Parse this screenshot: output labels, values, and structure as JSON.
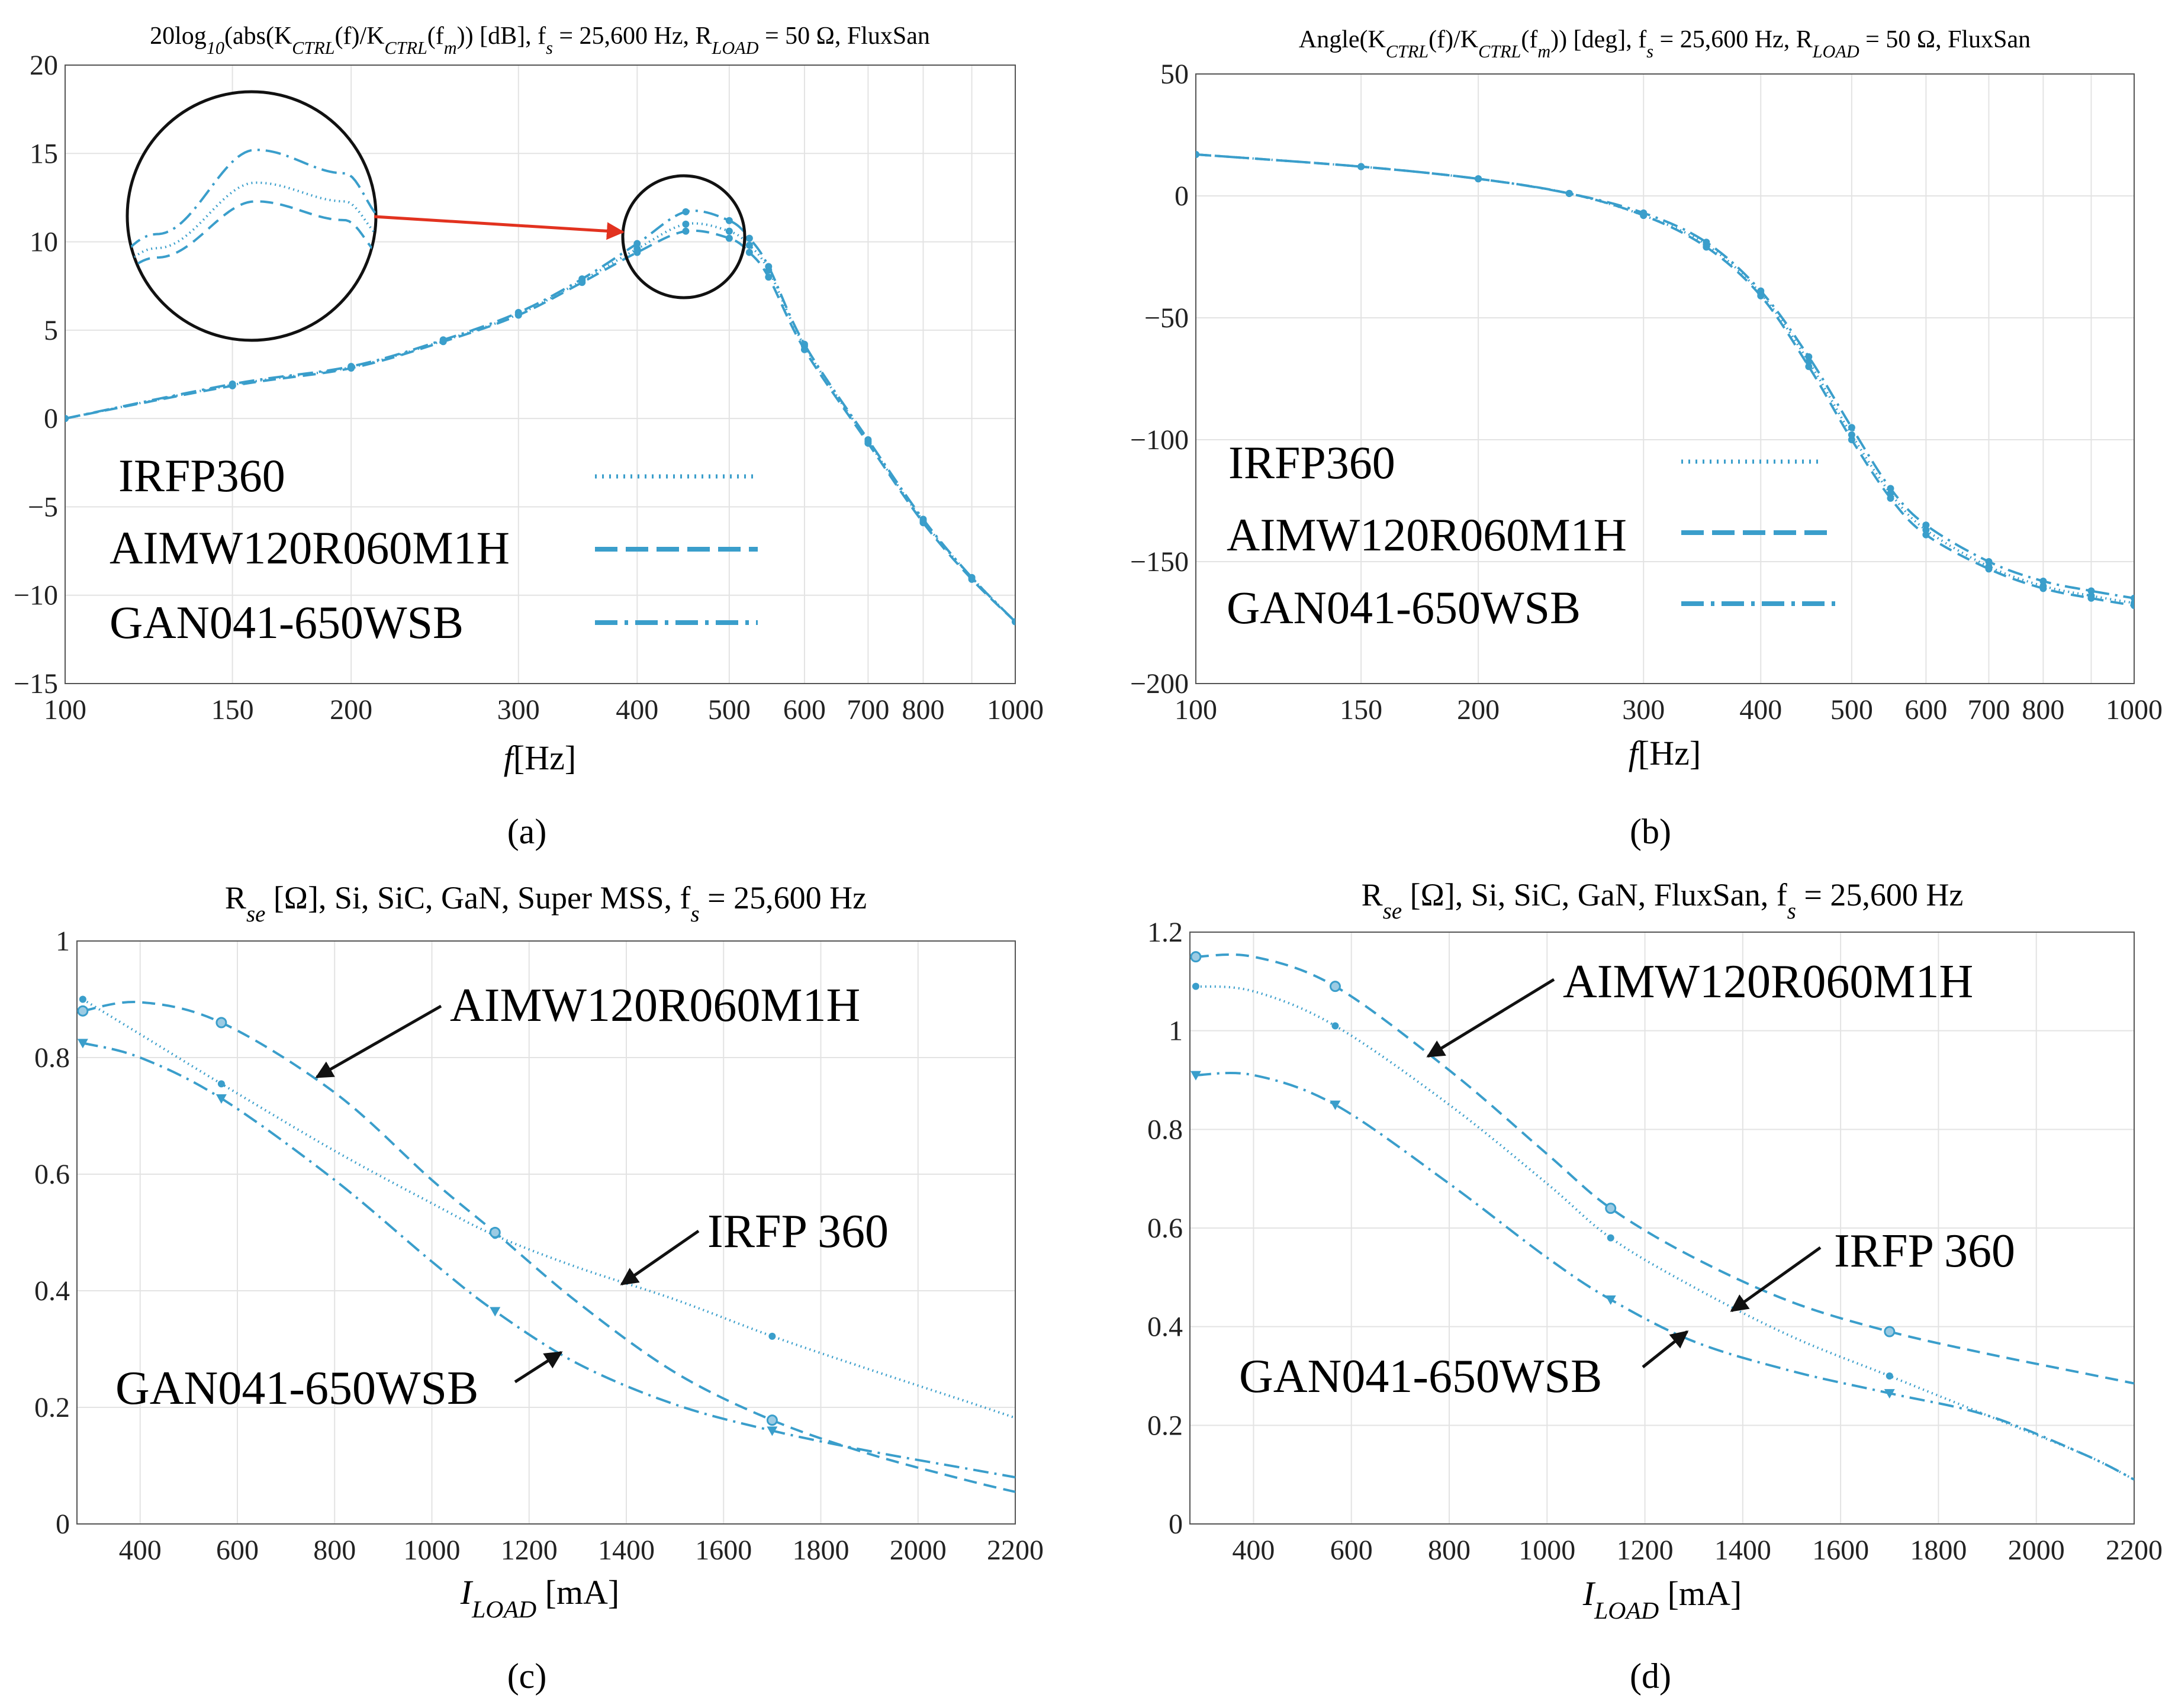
{
  "colors": {
    "series": "#3a9ecb",
    "arrow_black": "#111111",
    "arrow_red": "#e2321f",
    "grid": "#e3e3e3",
    "axis": "#333333"
  },
  "chart_data": [
    {
      "id": "a",
      "type": "line",
      "panel_label": "(a)",
      "title_parts": [
        "20log",
        "10",
        "(abs(K",
        "CTRL",
        "(f)/K",
        "CTRL",
        "(f",
        "m",
        ")) [dB], f",
        "s",
        " = 25,600 Hz, R",
        "LOAD",
        " = 50 Ω, FluxSan"
      ],
      "xlabel_main": "f",
      "xlabel_unit": "[Hz]",
      "xscale": "log",
      "xlim": [
        100,
        1000
      ],
      "ylim": [
        -15,
        20
      ],
      "xticks": [
        100,
        150,
        200,
        300,
        400,
        500,
        600,
        700,
        800,
        1000
      ],
      "xtick_labels": [
        "100",
        "150",
        "200",
        "300",
        "400",
        "500",
        "600",
        "700",
        "800",
        "1000"
      ],
      "yticks": [
        -15,
        -10,
        -5,
        0,
        5,
        10,
        15,
        20
      ],
      "ytick_labels": [
        "−15",
        "−10",
        "−5",
        "0",
        "5",
        "10",
        "15",
        "20"
      ],
      "legend": [
        "IRFP360",
        "AIMW120R060M1H",
        "GAN041-650WSB"
      ],
      "x": [
        100,
        150,
        200,
        250,
        300,
        350,
        400,
        450,
        500,
        525,
        550,
        600,
        700,
        800,
        900,
        1000
      ],
      "series": [
        {
          "name": "IRFP360",
          "dash": "dotted",
          "values": [
            0,
            1.9,
            2.9,
            4.4,
            5.9,
            7.8,
            9.6,
            11.0,
            10.6,
            9.8,
            8.4,
            4.1,
            -1.3,
            -5.8,
            -9.0,
            -11.5
          ]
        },
        {
          "name": "AIMW120R060M1H",
          "dash": "dashed",
          "values": [
            0,
            1.85,
            2.85,
            4.35,
            5.85,
            7.7,
            9.4,
            10.6,
            10.2,
            9.4,
            8.0,
            3.9,
            -1.4,
            -5.9,
            -9.1,
            -11.5
          ]
        },
        {
          "name": "GAN041-650WSB",
          "dash": "dashdot",
          "values": [
            0,
            1.95,
            2.95,
            4.45,
            6.0,
            7.9,
            9.9,
            11.7,
            11.2,
            10.2,
            8.6,
            4.2,
            -1.2,
            -5.7,
            -9.0,
            -11.5
          ]
        }
      ],
      "zoom_inset": true
    },
    {
      "id": "b",
      "type": "line",
      "panel_label": "(b)",
      "title_parts": [
        "Angle(K",
        "CTRL",
        "(f)/K",
        "CTRL",
        "(f",
        "m",
        ")) [deg], f",
        "s",
        " = 25,600 Hz, R",
        "LOAD",
        " = 50 Ω, FluxSan"
      ],
      "xlabel_main": "f",
      "xlabel_unit": "[Hz]",
      "xscale": "log",
      "xlim": [
        100,
        1000
      ],
      "ylim": [
        -200,
        50
      ],
      "xticks": [
        100,
        150,
        200,
        300,
        400,
        500,
        600,
        700,
        800,
        1000
      ],
      "xtick_labels": [
        "100",
        "150",
        "200",
        "300",
        "400",
        "500",
        "600",
        "700",
        "800",
        "1000"
      ],
      "yticks": [
        -200,
        -150,
        -100,
        -50,
        0,
        50
      ],
      "ytick_labels": [
        "−200",
        "−150",
        "−100",
        "−50",
        "0",
        "50"
      ],
      "legend": [
        "IRFP360",
        "AIMW120R060M1H",
        "GAN041-650WSB"
      ],
      "x": [
        100,
        150,
        200,
        250,
        300,
        350,
        400,
        450,
        500,
        550,
        600,
        700,
        800,
        900,
        1000
      ],
      "series": [
        {
          "name": "IRFP360",
          "dash": "dotted",
          "values": [
            17,
            12,
            7,
            1,
            -8,
            -20,
            -40,
            -68,
            -98,
            -122,
            -137,
            -152,
            -160,
            -164,
            -167
          ]
        },
        {
          "name": "AIMW120R060M1H",
          "dash": "dashed",
          "values": [
            17,
            12,
            7,
            1,
            -8,
            -21,
            -41,
            -70,
            -100,
            -124,
            -139,
            -153,
            -161,
            -165,
            -168
          ]
        },
        {
          "name": "GAN041-650WSB",
          "dash": "dashdot",
          "values": [
            17,
            12,
            7,
            1,
            -7,
            -19,
            -39,
            -66,
            -95,
            -120,
            -135,
            -150,
            -158,
            -162,
            -165
          ]
        }
      ]
    },
    {
      "id": "c",
      "type": "line",
      "panel_label": "(c)",
      "title_parts": [
        "R",
        "se",
        " [Ω], Si, SiC, GaN, Super MSS, f",
        "s",
        " = 25,600 Hz"
      ],
      "xlabel_main": "I",
      "xlabel_sub": "LOAD",
      "xlabel_unit": " [mA]",
      "xscale": "linear",
      "xlim": [
        270,
        2200
      ],
      "ylim": [
        0,
        1
      ],
      "xticks": [
        400,
        600,
        800,
        1000,
        1200,
        1400,
        1600,
        1800,
        2000,
        2200
      ],
      "xtick_labels": [
        "400",
        "600",
        "800",
        "1000",
        "1200",
        "1400",
        "1600",
        "1800",
        "2000",
        "2200"
      ],
      "yticks": [
        0,
        0.2,
        0.4,
        0.6,
        0.8,
        1
      ],
      "ytick_labels": [
        "0",
        "0.2",
        "0.4",
        "0.6",
        "0.8",
        "1"
      ],
      "series": [
        {
          "name": "IRFP 360",
          "dash": "dotted",
          "marker": "dot",
          "x": [
            282,
            400,
            567,
            800,
            1000,
            1130,
            1300,
            1500,
            1700,
            1900,
            2100,
            2200
          ],
          "values": [
            0.9,
            0.84,
            0.755,
            0.64,
            0.55,
            0.495,
            0.44,
            0.385,
            0.322,
            0.265,
            0.21,
            0.182
          ],
          "marker_x": [
            282,
            567,
            1130,
            1700
          ]
        },
        {
          "name": "AIMW120R060M1H",
          "dash": "dashed",
          "marker": "circle",
          "x": [
            282,
            400,
            567,
            800,
            1000,
            1130,
            1300,
            1500,
            1700,
            1900,
            2100,
            2200
          ],
          "values": [
            0.88,
            0.895,
            0.86,
            0.74,
            0.59,
            0.5,
            0.38,
            0.26,
            0.178,
            0.12,
            0.075,
            0.055
          ],
          "marker_x": [
            282,
            567,
            1130,
            1700
          ]
        },
        {
          "name": "GAN041-650WSB",
          "dash": "dashdot",
          "marker": "triangle",
          "x": [
            282,
            400,
            567,
            800,
            1000,
            1130,
            1300,
            1500,
            1700,
            1900,
            2100,
            2200
          ],
          "values": [
            0.825,
            0.8,
            0.73,
            0.59,
            0.45,
            0.365,
            0.275,
            0.205,
            0.16,
            0.125,
            0.095,
            0.08
          ],
          "marker_x": [
            282,
            567,
            1130,
            1700
          ]
        }
      ],
      "annotations": [
        "AIMW120R060M1H",
        "IRFP 360",
        "GAN041-650WSB"
      ]
    },
    {
      "id": "d",
      "type": "line",
      "panel_label": "(d)",
      "title_parts": [
        "R",
        "se",
        " [Ω], Si, SiC, GaN, FluxSan, f",
        "s",
        " = 25,600 Hz"
      ],
      "xlabel_main": "I",
      "xlabel_sub": "LOAD",
      "xlabel_unit": " [mA]",
      "xscale": "linear",
      "xlim": [
        270,
        2200
      ],
      "ylim": [
        0,
        1.2
      ],
      "xticks": [
        400,
        600,
        800,
        1000,
        1200,
        1400,
        1600,
        1800,
        2000,
        2200
      ],
      "xtick_labels": [
        "400",
        "600",
        "800",
        "1000",
        "1200",
        "1400",
        "1600",
        "1800",
        "2000",
        "2200"
      ],
      "yticks": [
        0,
        0.2,
        0.4,
        0.6,
        0.8,
        1,
        1.2
      ],
      "ytick_labels": [
        "0",
        "0.2",
        "0.4",
        "0.6",
        "0.8",
        "1",
        "1.2"
      ],
      "series": [
        {
          "name": "IRFP 360",
          "dash": "dotted",
          "marker": "dot",
          "x": [
            282,
            400,
            567,
            800,
            1000,
            1130,
            1300,
            1500,
            1700,
            1900,
            2100,
            2200
          ],
          "values": [
            1.09,
            1.08,
            1.01,
            0.85,
            0.69,
            0.58,
            0.48,
            0.38,
            0.3,
            0.22,
            0.14,
            0.09
          ],
          "marker_x": [
            282,
            567,
            1130,
            1700
          ]
        },
        {
          "name": "AIMW120R060M1H",
          "dash": "dashed",
          "marker": "circle",
          "x": [
            282,
            400,
            567,
            800,
            1000,
            1130,
            1300,
            1500,
            1700,
            1900,
            2100,
            2200
          ],
          "values": [
            1.15,
            1.15,
            1.09,
            0.92,
            0.75,
            0.64,
            0.54,
            0.45,
            0.39,
            0.345,
            0.305,
            0.285
          ],
          "marker_x": [
            282,
            567,
            1130,
            1700
          ]
        },
        {
          "name": "GAN041-650WSB",
          "dash": "dashdot",
          "marker": "triangle",
          "x": [
            282,
            400,
            567,
            800,
            1000,
            1130,
            1300,
            1500,
            1700,
            1900,
            2100,
            2200
          ],
          "values": [
            0.91,
            0.91,
            0.85,
            0.69,
            0.54,
            0.455,
            0.37,
            0.31,
            0.265,
            0.22,
            0.14,
            0.09
          ],
          "marker_x": [
            282,
            567,
            1130,
            1700
          ]
        }
      ],
      "annotations": [
        "AIMW120R060M1H",
        "IRFP 360",
        "GAN041-650WSB"
      ]
    }
  ]
}
